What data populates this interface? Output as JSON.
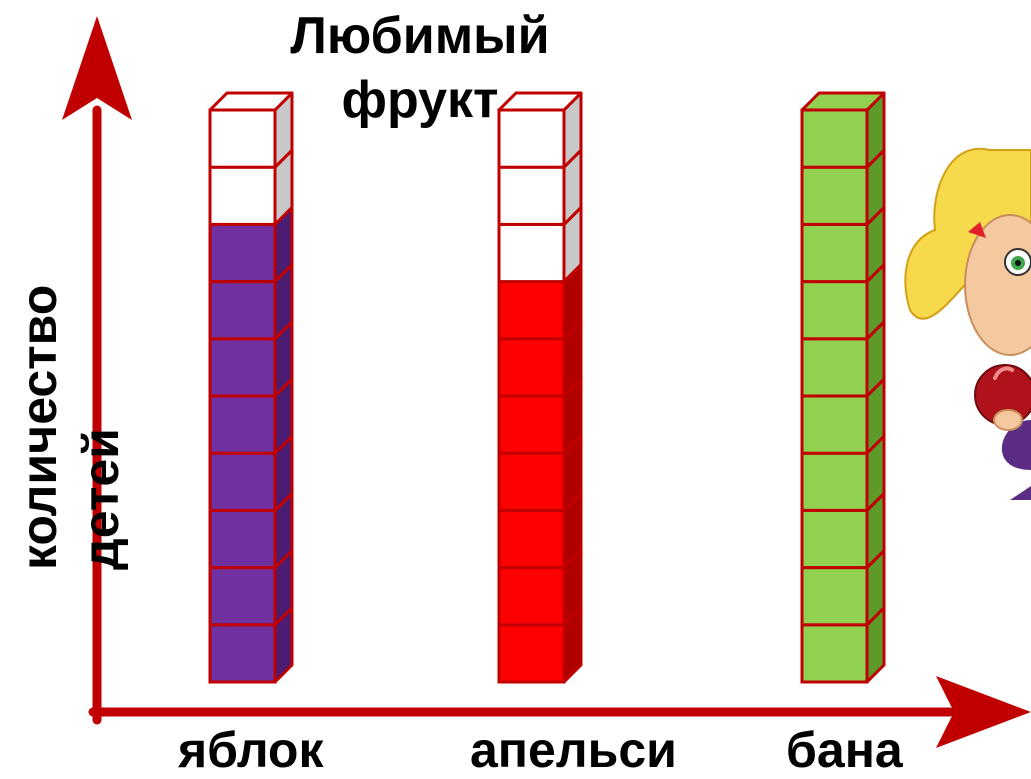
{
  "chart_data": {
    "type": "bar",
    "title": "Любимый фрукт",
    "ylabel": "количество детей",
    "xlabel": "",
    "categories": [
      "яблок",
      "апельси",
      "бана"
    ],
    "values": [
      8,
      7,
      10
    ],
    "capacity": 10,
    "ylim": [
      0,
      10
    ],
    "grid": false,
    "legend": "none",
    "colors": {
      "bars": [
        "#7030A0",
        "#FF0000",
        "#92D050"
      ],
      "bar_sides": [
        "#4A1C72",
        "#B00000",
        "#5E9A2A"
      ],
      "empty": "#FFFFFF",
      "empty_side": "#C8C8C8",
      "outline": "#C00000",
      "axis": "#C00000"
    }
  }
}
